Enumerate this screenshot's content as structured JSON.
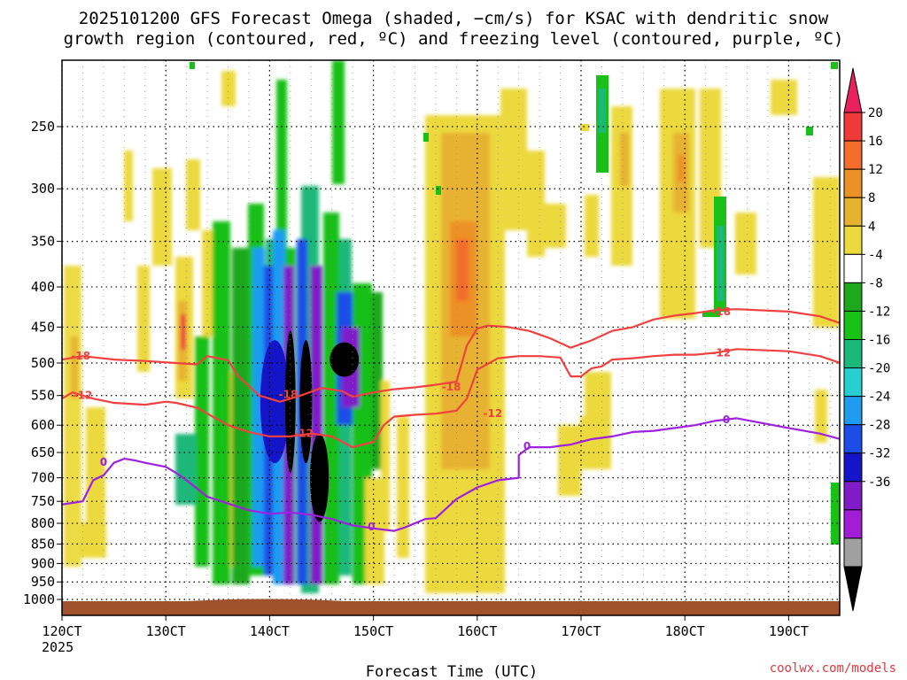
{
  "chart_data": {
    "type": "heatmap",
    "title": [
      "2025101200 GFS Forecast Omega (shaded, −cm/s) for KSAC with dendritic snow",
      "growth region (contoured, red, ºC) and freezing level (contoured, purple, ºC)"
    ],
    "xlabel": "Forecast Time (UTC)",
    "x_tick_labels": [
      "120CT",
      "130CT",
      "140CT",
      "150CT",
      "160CT",
      "170CT",
      "180CT",
      "190CT"
    ],
    "x_tick_values": [
      120,
      130,
      140,
      150,
      160,
      170,
      180,
      190
    ],
    "x_year_label": "2025",
    "xlim": [
      120,
      195
    ],
    "y_axis": "pressure (hPa), logarithmic, inverted",
    "y_tick_labels": [
      "250",
      "300",
      "350",
      "400",
      "450",
      "500",
      "550",
      "600",
      "650",
      "700",
      "750",
      "800",
      "850",
      "900",
      "950",
      "1000"
    ],
    "y_tick_values": [
      250,
      300,
      350,
      400,
      450,
      500,
      550,
      600,
      650,
      700,
      750,
      800,
      850,
      900,
      950,
      1000
    ],
    "ylim": [
      1050,
      200
    ],
    "colorbar": {
      "labels": [
        "20",
        "16",
        "12",
        "8",
        "4",
        "-4",
        "-8",
        "-12",
        "-16",
        "-20",
        "-24",
        "-28",
        "-32",
        "-36"
      ],
      "colors": [
        "#e8205e",
        "#ef3a3a",
        "#f36d2c",
        "#ec9128",
        "#e7b230",
        "#ecd93d",
        "#ffffff",
        "#1ea81e",
        "#18c018",
        "#1cb87a",
        "#28cfd0",
        "#1f9cf0",
        "#1d4de6",
        "#1414c8",
        "#7f1cc8",
        "#a21dd6",
        "#a0a0a0",
        "#000000"
      ]
    },
    "contours": [
      {
        "name": "dendritic-minus-18",
        "value": -18,
        "label": "-18",
        "color": "#f04040",
        "points": [
          [
            120,
            495
          ],
          [
            122,
            490
          ],
          [
            125,
            495
          ],
          [
            128,
            497
          ],
          [
            131,
            500
          ],
          [
            133,
            502
          ],
          [
            134,
            490
          ],
          [
            136,
            496
          ],
          [
            137,
            520
          ],
          [
            139,
            550
          ],
          [
            141,
            560
          ],
          [
            143,
            550
          ],
          [
            145,
            538
          ],
          [
            147,
            543
          ],
          [
            148,
            552
          ],
          [
            150,
            545
          ],
          [
            152,
            540
          ],
          [
            154,
            537
          ],
          [
            156,
            533
          ],
          [
            158,
            528
          ],
          [
            159,
            475
          ],
          [
            160,
            452
          ],
          [
            161,
            448
          ],
          [
            163,
            450
          ],
          [
            165,
            455
          ],
          [
            167,
            465
          ],
          [
            169,
            478
          ],
          [
            171,
            468
          ],
          [
            173,
            455
          ],
          [
            175,
            450
          ],
          [
            177,
            440
          ],
          [
            179,
            435
          ],
          [
            181,
            432
          ],
          [
            183,
            428
          ],
          [
            185,
            427
          ],
          [
            190,
            430
          ],
          [
            193,
            436
          ],
          [
            195,
            445
          ]
        ],
        "labels_at": [
          [
            121.8,
            490
          ],
          [
            141.8,
            548
          ],
          [
            157.5,
            536
          ],
          [
            183.5,
            430
          ]
        ]
      },
      {
        "name": "dendritic-minus-12",
        "value": -12,
        "label": "-12",
        "color": "#f04040",
        "points": [
          [
            120,
            555
          ],
          [
            121,
            545
          ],
          [
            123,
            555
          ],
          [
            125,
            562
          ],
          [
            128,
            565
          ],
          [
            130,
            560
          ],
          [
            131,
            562
          ],
          [
            133,
            570
          ],
          [
            134,
            580
          ],
          [
            136,
            600
          ],
          [
            138,
            612
          ],
          [
            140,
            620
          ],
          [
            142,
            620
          ],
          [
            144,
            615
          ],
          [
            146,
            620
          ],
          [
            148,
            640
          ],
          [
            150,
            630
          ],
          [
            151,
            600
          ],
          [
            152,
            585
          ],
          [
            154,
            582
          ],
          [
            156,
            580
          ],
          [
            158,
            575
          ],
          [
            159,
            555
          ],
          [
            160,
            510
          ],
          [
            162,
            493
          ],
          [
            164,
            490
          ],
          [
            166,
            490
          ],
          [
            168,
            492
          ],
          [
            169,
            520
          ],
          [
            170,
            520
          ],
          [
            171,
            508
          ],
          [
            172,
            505
          ],
          [
            173,
            495
          ],
          [
            175,
            493
          ],
          [
            177,
            490
          ],
          [
            179,
            488
          ],
          [
            181,
            488
          ],
          [
            183,
            485
          ],
          [
            185,
            480
          ],
          [
            190,
            483
          ],
          [
            193,
            490
          ],
          [
            195,
            500
          ]
        ],
        "labels_at": [
          [
            122,
            550
          ],
          [
            143.3,
            615
          ],
          [
            161.5,
            580
          ],
          [
            183.5,
            485
          ]
        ]
      },
      {
        "name": "freezing-level-0",
        "value": 0,
        "label": "0",
        "color": "#a020e0",
        "points": [
          [
            120,
            757
          ],
          [
            122,
            750
          ],
          [
            123,
            705
          ],
          [
            124,
            695
          ],
          [
            125,
            670
          ],
          [
            126,
            662
          ],
          [
            127,
            665
          ],
          [
            128,
            670
          ],
          [
            130,
            678
          ],
          [
            131,
            690
          ],
          [
            132,
            705
          ],
          [
            134,
            740
          ],
          [
            136,
            755
          ],
          [
            138,
            770
          ],
          [
            140,
            778
          ],
          [
            142,
            775
          ],
          [
            144,
            780
          ],
          [
            146,
            790
          ],
          [
            148,
            805
          ],
          [
            150,
            812
          ],
          [
            152,
            818
          ],
          [
            153,
            810
          ],
          [
            154,
            800
          ],
          [
            155,
            790
          ],
          [
            156,
            788
          ],
          [
            158,
            745
          ],
          [
            160,
            720
          ],
          [
            162,
            705
          ],
          [
            164,
            700
          ],
          [
            164,
            655
          ],
          [
            165,
            640
          ],
          [
            167,
            640
          ],
          [
            169,
            635
          ],
          [
            171,
            625
          ],
          [
            173,
            620
          ],
          [
            175,
            612
          ],
          [
            177,
            610
          ],
          [
            179,
            605
          ],
          [
            181,
            600
          ],
          [
            183,
            592
          ],
          [
            185,
            588
          ],
          [
            190,
            605
          ],
          [
            193,
            615
          ],
          [
            195,
            625
          ]
        ],
        "labels_at": [
          [
            124,
            669
          ],
          [
            149.8,
            808
          ],
          [
            164.8,
            638
          ],
          [
            184,
            590
          ]
        ]
      }
    ],
    "omega_blobs": [
      {
        "cx": 140.5,
        "cy": 560,
        "rx": 1.4,
        "ry": 200,
        "color": "#1414c8"
      },
      {
        "cx": 142.0,
        "cy": 560,
        "rx": 0.5,
        "ry": 230,
        "color": "#000000"
      },
      {
        "cx": 143.5,
        "cy": 560,
        "rx": 0.6,
        "ry": 200,
        "color": "#000000"
      },
      {
        "cx": 144.8,
        "cy": 700,
        "rx": 0.9,
        "ry": 180,
        "color": "#000000"
      },
      {
        "cx": 147.2,
        "cy": 495,
        "rx": 1.4,
        "ry": 50,
        "color": "#000000"
      }
    ],
    "surface_fill_color": "#a0522d"
  },
  "credit": "coolwx.com/models"
}
